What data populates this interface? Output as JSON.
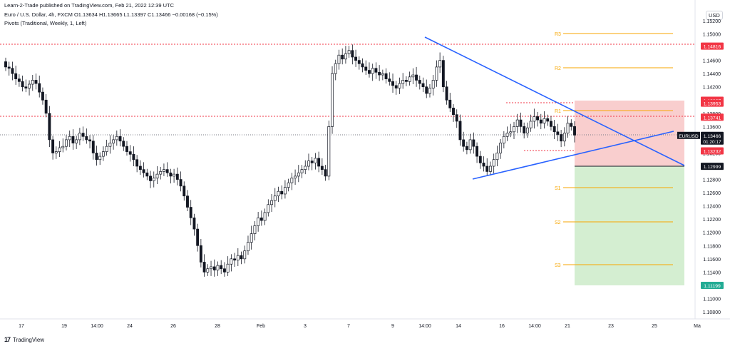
{
  "header": {
    "publisher": "Learn-2-Trade published on TradingView.com, Feb 21, 2022 12:39 UTC",
    "symbol_line": "Euro / U.S. Dollar, 4h, FXCM  O1.13634 H1.13665 L1.13397 C1.13466 −0.00168 (−0.15%)",
    "indicator_line": "Pivots (Traditional, Weekly, 1, Left)",
    "currency": "USD"
  },
  "price_axis": {
    "ticks": [
      "1.15200",
      "1.15000",
      "1.14800",
      "1.14600",
      "1.14400",
      "1.14200",
      "1.14000",
      "1.13800",
      "1.13600",
      "1.13400",
      "1.13200",
      "1.13000",
      "1.12800",
      "1.12600",
      "1.12400",
      "1.12200",
      "1.12000",
      "1.11800",
      "1.11600",
      "1.11400",
      "1.11200",
      "1.11000",
      "1.10800"
    ],
    "levels": [
      {
        "value": "1.14816",
        "color": "#f23645"
      },
      {
        "value": "1.13997",
        "color": "#f23645"
      },
      {
        "value": "1.13953",
        "color": "#f23645"
      },
      {
        "value": "1.13741",
        "color": "#f23645"
      },
      {
        "value": "1.13232",
        "color": "#f23645"
      },
      {
        "value": "1.12999",
        "color": "#131722"
      },
      {
        "value": "1.11199",
        "color": "#22ab94"
      }
    ],
    "current": {
      "symbol": "EURUSD",
      "price": "1.13466",
      "countdown": "01:20:17"
    }
  },
  "time_axis": {
    "labels": [
      "17",
      "19",
      "14:00",
      "24",
      "26",
      "28",
      "Feb",
      "3",
      "7",
      "9",
      "14:00",
      "14",
      "16",
      "14:00",
      "21",
      "23",
      "25",
      "Ma"
    ]
  },
  "pivots": {
    "labels": [
      "R3",
      "R2",
      "R1",
      "S1",
      "S2",
      "S3"
    ],
    "color": "#f7a600"
  },
  "colors": {
    "trendline": "#2962ff",
    "resistance_dotted": "#f23645",
    "loss_zone": "#f8c6c6",
    "profit_zone": "#cdebc9",
    "candle": "#131722"
  },
  "footer": {
    "brand": "TradingView"
  }
}
